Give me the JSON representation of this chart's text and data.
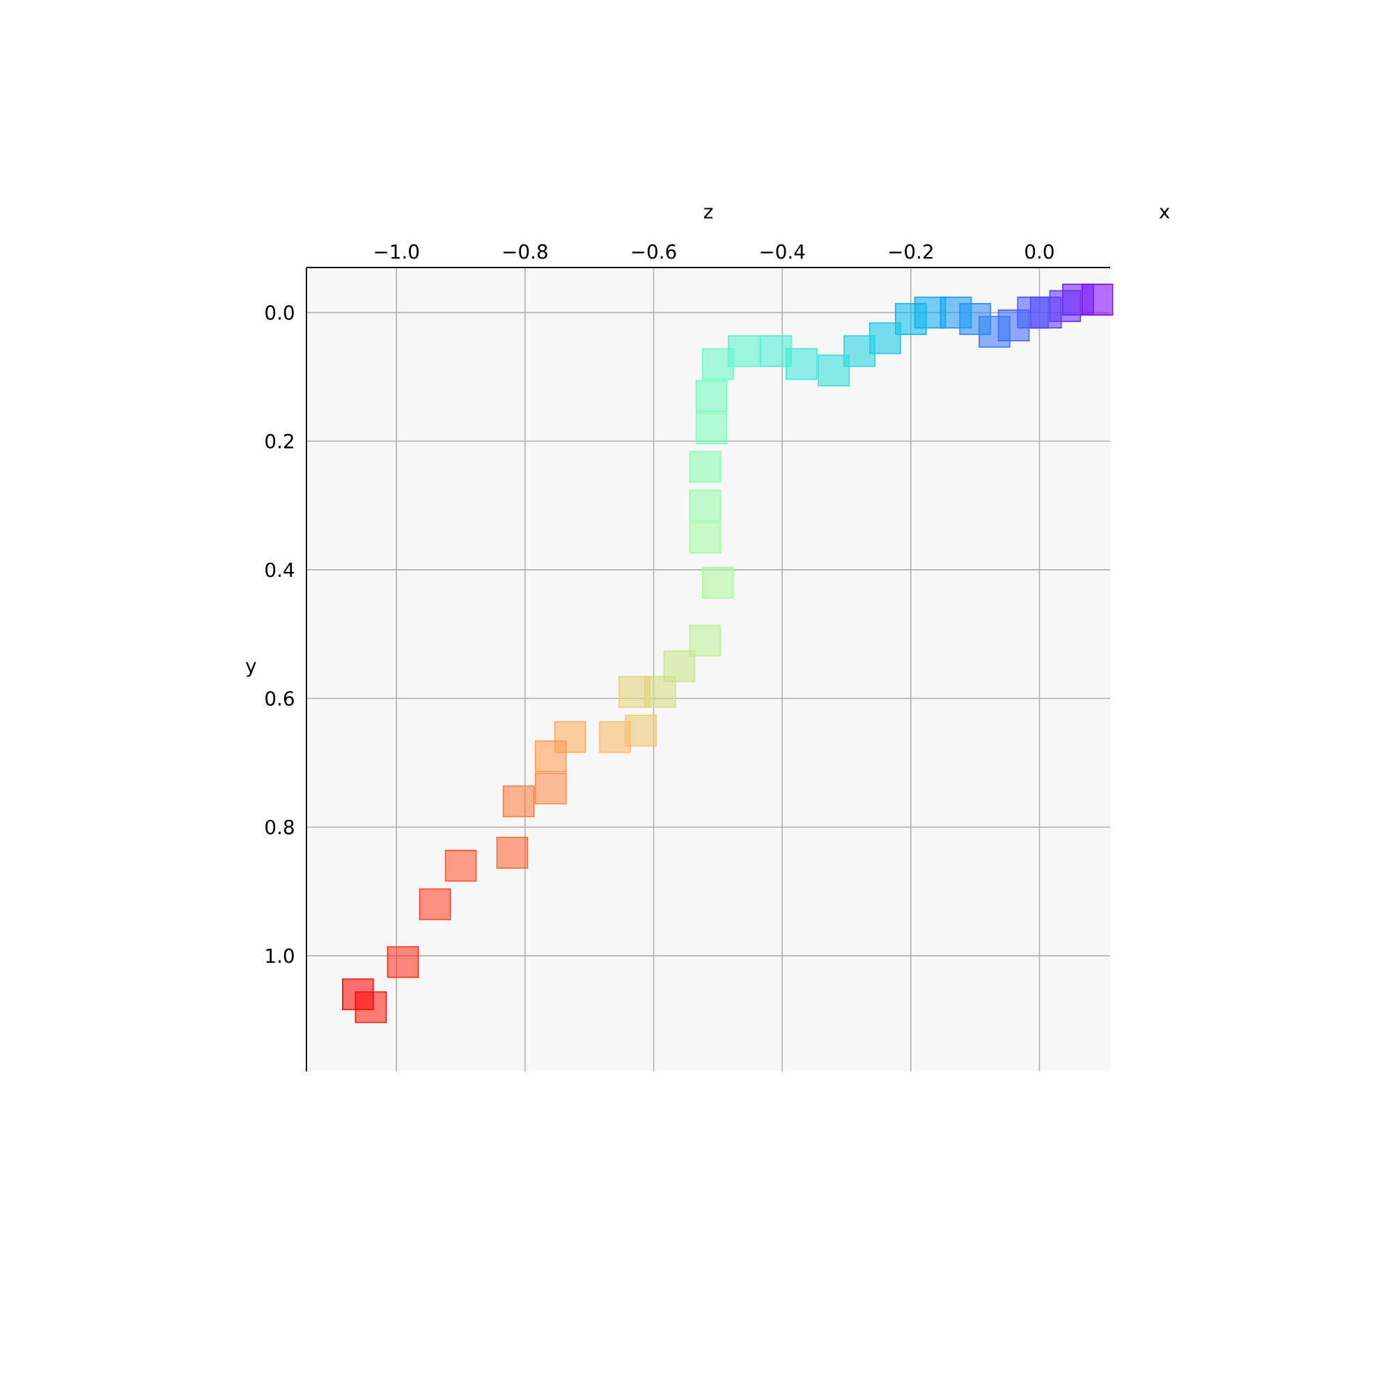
{
  "chart_data": {
    "type": "scatter",
    "xlabel": "z",
    "ylabel": "y",
    "x2label": "x",
    "marker": "square",
    "grid": true,
    "xlim": [
      -1.14,
      0.11
    ],
    "ylim": [
      1.18,
      -0.07
    ],
    "xticks": [
      {
        "value": -1.0,
        "label": "−1.0"
      },
      {
        "value": -0.8,
        "label": "−0.8"
      },
      {
        "value": -0.6,
        "label": "−0.6"
      },
      {
        "value": -0.4,
        "label": "−0.4"
      },
      {
        "value": -0.2,
        "label": "−0.2"
      },
      {
        "value": 0.0,
        "label": "0.0"
      }
    ],
    "yticks": [
      {
        "value": 0.0,
        "label": "0.0"
      },
      {
        "value": 0.2,
        "label": "0.2"
      },
      {
        "value": 0.4,
        "label": "0.4"
      },
      {
        "value": 0.6,
        "label": "0.6"
      },
      {
        "value": 0.8,
        "label": "0.8"
      },
      {
        "value": 1.0,
        "label": "1.0"
      }
    ],
    "x": [
      0.09,
      0.06,
      0.04,
      0.01,
      -0.01,
      -0.04,
      -0.07,
      -0.1,
      -0.13,
      -0.17,
      -0.2,
      -0.24,
      -0.28,
      -0.32,
      -0.37,
      -0.41,
      -0.46,
      -0.5,
      -0.51,
      -0.51,
      -0.52,
      -0.52,
      -0.52,
      -0.5,
      -0.52,
      -0.56,
      -0.59,
      -0.63,
      -0.62,
      -0.66,
      -0.73,
      -0.76,
      -0.76,
      -0.81,
      -0.82,
      -0.9,
      -0.94,
      -0.99,
      -1.04,
      -1.06
    ],
    "values": [
      -0.02,
      -0.02,
      -0.01,
      0.0,
      0.0,
      0.02,
      0.03,
      0.01,
      0.0,
      0.0,
      0.01,
      0.04,
      0.06,
      0.09,
      0.08,
      0.06,
      0.06,
      0.08,
      0.13,
      0.18,
      0.24,
      0.3,
      0.35,
      0.42,
      0.51,
      0.55,
      0.59,
      0.59,
      0.65,
      0.66,
      0.66,
      0.69,
      0.74,
      0.76,
      0.84,
      0.86,
      0.92,
      1.01,
      1.08,
      1.06
    ],
    "colors": [
      "#8000ff",
      "#7215ff",
      "#6529fe",
      "#583dfd",
      "#4b51fc",
      "#3e64fa",
      "#3176f8",
      "#2488f5",
      "#1799f2",
      "#0aa9ee",
      "#03b8eb",
      "#10c5e6",
      "#1dd2e2",
      "#2bdddd",
      "#38e6d8",
      "#45eed2",
      "#52f5cc",
      "#5ffac6",
      "#6cfdbf",
      "#79ffb8",
      "#86ffb1",
      "#93fda9",
      "#a0faa1",
      "#adf599",
      "#baee91",
      "#c7e689",
      "#d5dd80",
      "#e2d276",
      "#efc56d",
      "#fcb864",
      "#ffa95a",
      "#ff9951",
      "#ff8847",
      "#ff763d",
      "#ff6433",
      "#ff5129",
      "#ff3d1f",
      "#ff2915",
      "#ff150a",
      "#ff0000"
    ]
  }
}
